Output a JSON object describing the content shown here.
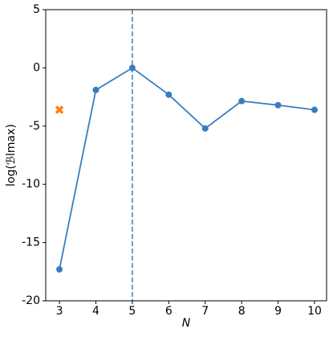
{
  "chart_data": {
    "type": "line",
    "xlabel": "N",
    "ylabel": "log(ℬlmax)",
    "xlim": [
      2.625,
      10.33
    ],
    "xticks": [
      3,
      4,
      5,
      6,
      7,
      8,
      9,
      10
    ],
    "ylim": [
      -20,
      5
    ],
    "yticks": [
      -20,
      -15,
      -10,
      -5,
      0,
      5
    ],
    "series": [
      {
        "color": "#3a7dbd",
        "marker": "circle",
        "line": true,
        "x": [
          3,
          4,
          5,
          6,
          7,
          8,
          9,
          10
        ],
        "values": [
          -17.3,
          -1.9,
          0,
          -2.3,
          -5.2,
          -2.85,
          -3.2,
          -3.6
        ]
      },
      {
        "color": "#ff7f0e",
        "marker": "x",
        "line": false,
        "x": [
          3
        ],
        "values": [
          -3.6
        ]
      }
    ],
    "vline": {
      "x": 5,
      "color": "#3a7dbd",
      "dashed": true
    }
  }
}
